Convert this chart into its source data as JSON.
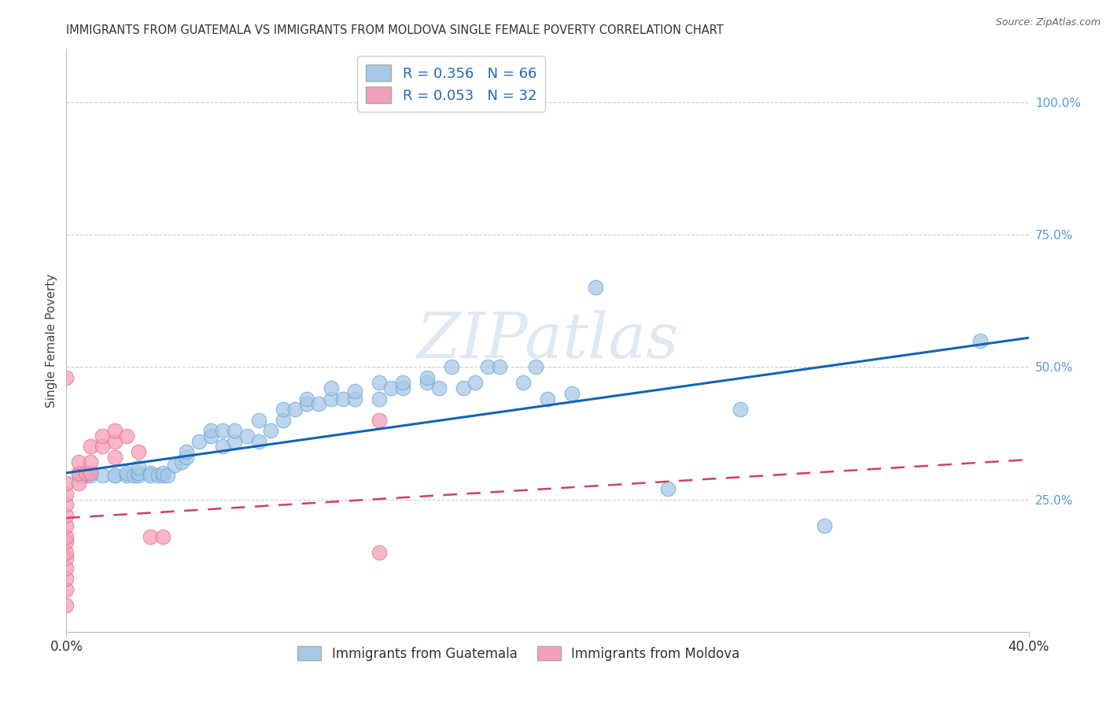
{
  "title": "IMMIGRANTS FROM GUATEMALA VS IMMIGRANTS FROM MOLDOVA SINGLE FEMALE POVERTY CORRELATION CHART",
  "source": "Source: ZipAtlas.com",
  "ylabel": "Single Female Poverty",
  "xlim": [
    0.0,
    0.4
  ],
  "ylim": [
    0.0,
    1.1
  ],
  "yticks_right": [
    1.0,
    0.75,
    0.5,
    0.25
  ],
  "ytick_labels_right": [
    "100.0%",
    "75.0%",
    "50.0%",
    "25.0%"
  ],
  "xtick_left_label": "0.0%",
  "xtick_right_label": "40.0%",
  "guatemala_R": 0.356,
  "guatemala_N": 66,
  "moldova_R": 0.053,
  "moldova_N": 32,
  "guatemala_color": "#a8c8e8",
  "moldova_color": "#f4a0b8",
  "guatemala_edge_color": "#6aaad4",
  "moldova_edge_color": "#e87090",
  "guatemala_line_color": "#1464b4",
  "moldova_line_color": "#d04060",
  "background_color": "#ffffff",
  "watermark": "ZIPatlas",
  "guatemala_x": [
    0.005,
    0.008,
    0.01,
    0.015,
    0.02,
    0.02,
    0.025,
    0.025,
    0.028,
    0.03,
    0.03,
    0.03,
    0.035,
    0.035,
    0.038,
    0.04,
    0.04,
    0.042,
    0.045,
    0.048,
    0.05,
    0.05,
    0.055,
    0.06,
    0.06,
    0.065,
    0.065,
    0.07,
    0.07,
    0.075,
    0.08,
    0.08,
    0.085,
    0.09,
    0.09,
    0.095,
    0.1,
    0.1,
    0.105,
    0.11,
    0.11,
    0.115,
    0.12,
    0.12,
    0.13,
    0.13,
    0.135,
    0.14,
    0.14,
    0.15,
    0.15,
    0.155,
    0.16,
    0.165,
    0.17,
    0.175,
    0.18,
    0.19,
    0.195,
    0.2,
    0.21,
    0.22,
    0.25,
    0.28,
    0.315,
    0.38
  ],
  "guatemala_y": [
    0.295,
    0.295,
    0.295,
    0.295,
    0.295,
    0.295,
    0.295,
    0.3,
    0.295,
    0.295,
    0.3,
    0.31,
    0.3,
    0.295,
    0.295,
    0.295,
    0.3,
    0.295,
    0.315,
    0.32,
    0.33,
    0.34,
    0.36,
    0.37,
    0.38,
    0.35,
    0.38,
    0.36,
    0.38,
    0.37,
    0.36,
    0.4,
    0.38,
    0.4,
    0.42,
    0.42,
    0.43,
    0.44,
    0.43,
    0.44,
    0.46,
    0.44,
    0.44,
    0.455,
    0.44,
    0.47,
    0.46,
    0.46,
    0.47,
    0.47,
    0.48,
    0.46,
    0.5,
    0.46,
    0.47,
    0.5,
    0.5,
    0.47,
    0.5,
    0.44,
    0.45,
    0.65,
    0.27,
    0.42,
    0.2,
    0.55
  ],
  "moldova_x": [
    0.0,
    0.0,
    0.0,
    0.0,
    0.0,
    0.0,
    0.0,
    0.0,
    0.0,
    0.0,
    0.0,
    0.0,
    0.0,
    0.005,
    0.005,
    0.005,
    0.008,
    0.01,
    0.01,
    0.01,
    0.015,
    0.015,
    0.02,
    0.02,
    0.02,
    0.025,
    0.03,
    0.035,
    0.04,
    0.13,
    0.13,
    0.0
  ],
  "moldova_y": [
    0.05,
    0.08,
    0.1,
    0.12,
    0.14,
    0.15,
    0.17,
    0.18,
    0.2,
    0.22,
    0.24,
    0.26,
    0.28,
    0.28,
    0.3,
    0.32,
    0.3,
    0.3,
    0.32,
    0.35,
    0.35,
    0.37,
    0.33,
    0.36,
    0.38,
    0.37,
    0.34,
    0.18,
    0.18,
    0.15,
    0.4,
    0.48
  ],
  "blue_line_x0": 0.0,
  "blue_line_y0": 0.3,
  "blue_line_x1": 0.4,
  "blue_line_y1": 0.555,
  "pink_line_x0": 0.0,
  "pink_line_y0": 0.215,
  "pink_line_x1": 0.4,
  "pink_line_y1": 0.325
}
